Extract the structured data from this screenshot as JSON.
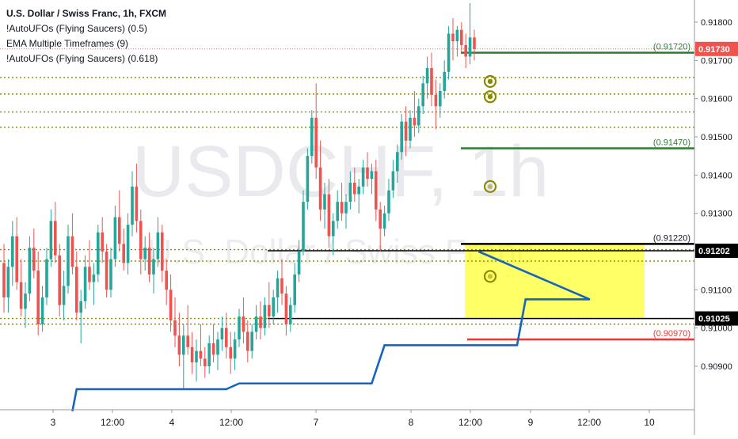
{
  "header": {
    "title": "U.S. Dollar / Swiss Franc, 1h, FXCM",
    "indicators": [
      "!AutoUFOs (Flying Saucers) (0.5)",
      "EMA Multiple Timeframes (9)",
      "!AutoUFOs (Flying Saucers) (0.618)"
    ]
  },
  "watermark": {
    "symbol": "USDCHF, 1h",
    "name": "U.S. Dollar / Swiss Franc"
  },
  "colors": {
    "up": "#26a69a",
    "down": "#ef5350",
    "green_line": "#2e7d32",
    "red_line": "#e53935",
    "ema": "#1565c0",
    "dotted": "#8a8a00",
    "zone": "#ffff00",
    "ufo": "#8a8a00",
    "axis_text": "#131722"
  },
  "chart_data": {
    "type": "candlestick",
    "x_ticks": [
      "3",
      "12:00",
      "4",
      "12:00",
      "7",
      "8",
      "12:00",
      "9",
      "12:00",
      "10"
    ],
    "y_ticks": [
      "0.91800",
      "0.91700",
      "0.91600",
      "0.91500",
      "0.91400",
      "0.91300",
      "0.91100",
      "0.91000",
      "0.90900"
    ],
    "ylim": [
      0.9081,
      0.9186
    ],
    "price_labels": [
      {
        "text": "0.91730",
        "value": 0.9173,
        "style": "red"
      },
      {
        "text": "0.91202",
        "value": 0.91202,
        "style": "black"
      },
      {
        "text": "0.91025",
        "value": 0.91025,
        "style": "black"
      }
    ],
    "level_labels": [
      {
        "text": "(0.91720)",
        "value": 0.9172,
        "color": "green"
      },
      {
        "text": "(0.91470)",
        "value": 0.9147,
        "color": "green"
      },
      {
        "text": "(0.91220)",
        "value": 0.9122,
        "color": "black"
      },
      {
        "text": "(0.90970)",
        "value": 0.9097,
        "color": "red"
      }
    ],
    "dotted_levels": [
      0.91655,
      0.91612,
      0.91565,
      0.91525,
      0.91205,
      0.91175,
      0.91025,
      0.9101
    ],
    "zone": {
      "top": 0.9122,
      "bottom": 0.91025
    },
    "ufo_levels": [
      0.91645,
      0.91605,
      0.9137,
      0.91135
    ],
    "ema_steps": [
      {
        "i0": 28,
        "i1": 52,
        "v": 0.9084
      },
      {
        "i0": 55,
        "i1": 86,
        "v": 0.90855
      },
      {
        "i0": 89,
        "i1": 120,
        "v": 0.90955
      },
      {
        "i0": 122,
        "i1": 137,
        "v": 0.91075
      }
    ],
    "ohlc": [
      {
        "o": 0.9117,
        "h": 0.9122,
        "l": 0.9104,
        "c": 0.9108
      },
      {
        "o": 0.9108,
        "h": 0.9118,
        "l": 0.9104,
        "c": 0.9116
      },
      {
        "o": 0.9116,
        "h": 0.9128,
        "l": 0.9111,
        "c": 0.9124
      },
      {
        "o": 0.9124,
        "h": 0.9129,
        "l": 0.911,
        "c": 0.9112
      },
      {
        "o": 0.9112,
        "h": 0.9118,
        "l": 0.9103,
        "c": 0.9105
      },
      {
        "o": 0.9105,
        "h": 0.9112,
        "l": 0.91,
        "c": 0.9109
      },
      {
        "o": 0.9109,
        "h": 0.9124,
        "l": 0.9107,
        "c": 0.9121
      },
      {
        "o": 0.9121,
        "h": 0.9126,
        "l": 0.9113,
        "c": 0.9115
      },
      {
        "o": 0.9115,
        "h": 0.912,
        "l": 0.9098,
        "c": 0.9101
      },
      {
        "o": 0.9101,
        "h": 0.9111,
        "l": 0.9099,
        "c": 0.9108
      },
      {
        "o": 0.9108,
        "h": 0.9121,
        "l": 0.9106,
        "c": 0.9118
      },
      {
        "o": 0.9118,
        "h": 0.9131,
        "l": 0.9116,
        "c": 0.9128
      },
      {
        "o": 0.9128,
        "h": 0.9133,
        "l": 0.9117,
        "c": 0.9119
      },
      {
        "o": 0.9119,
        "h": 0.9122,
        "l": 0.9103,
        "c": 0.9106
      },
      {
        "o": 0.9106,
        "h": 0.9115,
        "l": 0.9102,
        "c": 0.9111
      },
      {
        "o": 0.9111,
        "h": 0.9127,
        "l": 0.9109,
        "c": 0.9124
      },
      {
        "o": 0.9124,
        "h": 0.913,
        "l": 0.9114,
        "c": 0.9116
      },
      {
        "o": 0.9116,
        "h": 0.912,
        "l": 0.9102,
        "c": 0.9104
      },
      {
        "o": 0.9104,
        "h": 0.911,
        "l": 0.9096,
        "c": 0.9107
      },
      {
        "o": 0.9107,
        "h": 0.9119,
        "l": 0.9105,
        "c": 0.9116
      },
      {
        "o": 0.9116,
        "h": 0.9123,
        "l": 0.911,
        "c": 0.9112
      },
      {
        "o": 0.9112,
        "h": 0.9117,
        "l": 0.9106,
        "c": 0.9114
      },
      {
        "o": 0.9114,
        "h": 0.9127,
        "l": 0.9112,
        "c": 0.9125
      },
      {
        "o": 0.9125,
        "h": 0.9129,
        "l": 0.9117,
        "c": 0.912
      },
      {
        "o": 0.912,
        "h": 0.9122,
        "l": 0.9108,
        "c": 0.911
      },
      {
        "o": 0.911,
        "h": 0.9121,
        "l": 0.9108,
        "c": 0.9118
      },
      {
        "o": 0.9118,
        "h": 0.9132,
        "l": 0.9116,
        "c": 0.9129
      },
      {
        "o": 0.9129,
        "h": 0.9136,
        "l": 0.912,
        "c": 0.9122
      },
      {
        "o": 0.9122,
        "h": 0.9126,
        "l": 0.9115,
        "c": 0.9117
      },
      {
        "o": 0.9117,
        "h": 0.913,
        "l": 0.9114,
        "c": 0.9127
      },
      {
        "o": 0.9127,
        "h": 0.9141,
        "l": 0.9124,
        "c": 0.9137
      },
      {
        "o": 0.9137,
        "h": 0.9143,
        "l": 0.9125,
        "c": 0.9128
      },
      {
        "o": 0.9128,
        "h": 0.9131,
        "l": 0.9114,
        "c": 0.9118
      },
      {
        "o": 0.9118,
        "h": 0.9124,
        "l": 0.9115,
        "c": 0.9121
      },
      {
        "o": 0.9121,
        "h": 0.9125,
        "l": 0.9112,
        "c": 0.9114
      },
      {
        "o": 0.9114,
        "h": 0.9121,
        "l": 0.9109,
        "c": 0.9118
      },
      {
        "o": 0.9118,
        "h": 0.9129,
        "l": 0.9116,
        "c": 0.9125
      },
      {
        "o": 0.9125,
        "h": 0.9127,
        "l": 0.9112,
        "c": 0.9115
      },
      {
        "o": 0.9115,
        "h": 0.9118,
        "l": 0.9106,
        "c": 0.911
      },
      {
        "o": 0.911,
        "h": 0.9114,
        "l": 0.9099,
        "c": 0.9102
      },
      {
        "o": 0.9102,
        "h": 0.9108,
        "l": 0.9095,
        "c": 0.9098
      },
      {
        "o": 0.9098,
        "h": 0.9104,
        "l": 0.909,
        "c": 0.9093
      },
      {
        "o": 0.9093,
        "h": 0.9101,
        "l": 0.9084,
        "c": 0.9098
      },
      {
        "o": 0.9098,
        "h": 0.9106,
        "l": 0.9093,
        "c": 0.9095
      },
      {
        "o": 0.9095,
        "h": 0.9099,
        "l": 0.9088,
        "c": 0.9091
      },
      {
        "o": 0.9091,
        "h": 0.9097,
        "l": 0.9086,
        "c": 0.9094
      },
      {
        "o": 0.9094,
        "h": 0.9101,
        "l": 0.909,
        "c": 0.9092
      },
      {
        "o": 0.9092,
        "h": 0.9095,
        "l": 0.9087,
        "c": 0.909
      },
      {
        "o": 0.909,
        "h": 0.9098,
        "l": 0.9088,
        "c": 0.9096
      },
      {
        "o": 0.9096,
        "h": 0.9101,
        "l": 0.9091,
        "c": 0.9093
      },
      {
        "o": 0.9093,
        "h": 0.9099,
        "l": 0.9089,
        "c": 0.9097
      },
      {
        "o": 0.9097,
        "h": 0.9103,
        "l": 0.9094,
        "c": 0.91
      },
      {
        "o": 0.91,
        "h": 0.9104,
        "l": 0.9092,
        "c": 0.9095
      },
      {
        "o": 0.9095,
        "h": 0.9099,
        "l": 0.9088,
        "c": 0.9092
      },
      {
        "o": 0.9092,
        "h": 0.9099,
        "l": 0.9089,
        "c": 0.9097
      },
      {
        "o": 0.9097,
        "h": 0.9105,
        "l": 0.9095,
        "c": 0.9103
      },
      {
        "o": 0.9103,
        "h": 0.9108,
        "l": 0.9096,
        "c": 0.9099
      },
      {
        "o": 0.9099,
        "h": 0.9102,
        "l": 0.9091,
        "c": 0.9094
      },
      {
        "o": 0.9094,
        "h": 0.9101,
        "l": 0.9092,
        "c": 0.9099
      },
      {
        "o": 0.9099,
        "h": 0.9106,
        "l": 0.9097,
        "c": 0.9103
      },
      {
        "o": 0.9103,
        "h": 0.9107,
        "l": 0.9097,
        "c": 0.91
      },
      {
        "o": 0.91,
        "h": 0.9108,
        "l": 0.9098,
        "c": 0.9106
      },
      {
        "o": 0.9106,
        "h": 0.9112,
        "l": 0.91,
        "c": 0.9103
      },
      {
        "o": 0.9103,
        "h": 0.911,
        "l": 0.9101,
        "c": 0.9108
      },
      {
        "o": 0.9108,
        "h": 0.9115,
        "l": 0.9104,
        "c": 0.9113
      },
      {
        "o": 0.9113,
        "h": 0.9118,
        "l": 0.9106,
        "c": 0.9109
      },
      {
        "o": 0.9109,
        "h": 0.9111,
        "l": 0.9098,
        "c": 0.9101
      },
      {
        "o": 0.9101,
        "h": 0.9108,
        "l": 0.9099,
        "c": 0.9106
      },
      {
        "o": 0.9106,
        "h": 0.9117,
        "l": 0.9104,
        "c": 0.9114
      },
      {
        "o": 0.9114,
        "h": 0.9123,
        "l": 0.9112,
        "c": 0.912
      },
      {
        "o": 0.912,
        "h": 0.9136,
        "l": 0.9119,
        "c": 0.9133
      },
      {
        "o": 0.9133,
        "h": 0.9147,
        "l": 0.9131,
        "c": 0.9145
      },
      {
        "o": 0.9145,
        "h": 0.9157,
        "l": 0.9143,
        "c": 0.9155
      },
      {
        "o": 0.9155,
        "h": 0.9164,
        "l": 0.9139,
        "c": 0.9142
      },
      {
        "o": 0.9142,
        "h": 0.9149,
        "l": 0.9128,
        "c": 0.9131
      },
      {
        "o": 0.9131,
        "h": 0.9138,
        "l": 0.9126,
        "c": 0.9135
      },
      {
        "o": 0.9135,
        "h": 0.9139,
        "l": 0.9121,
        "c": 0.9124
      },
      {
        "o": 0.9124,
        "h": 0.913,
        "l": 0.9119,
        "c": 0.9128
      },
      {
        "o": 0.9128,
        "h": 0.9136,
        "l": 0.9126,
        "c": 0.9133
      },
      {
        "o": 0.9133,
        "h": 0.9138,
        "l": 0.9128,
        "c": 0.913
      },
      {
        "o": 0.913,
        "h": 0.9135,
        "l": 0.9126,
        "c": 0.9133
      },
      {
        "o": 0.9133,
        "h": 0.9141,
        "l": 0.9131,
        "c": 0.9138
      },
      {
        "o": 0.9138,
        "h": 0.9142,
        "l": 0.9133,
        "c": 0.9135
      },
      {
        "o": 0.9135,
        "h": 0.9139,
        "l": 0.913,
        "c": 0.9137
      },
      {
        "o": 0.9137,
        "h": 0.9144,
        "l": 0.9135,
        "c": 0.9142
      },
      {
        "o": 0.9142,
        "h": 0.9146,
        "l": 0.9137,
        "c": 0.9139
      },
      {
        "o": 0.9139,
        "h": 0.9143,
        "l": 0.9135,
        "c": 0.9141
      },
      {
        "o": 0.9141,
        "h": 0.9144,
        "l": 0.9128,
        "c": 0.9131
      },
      {
        "o": 0.9131,
        "h": 0.9133,
        "l": 0.912,
        "c": 0.9126
      },
      {
        "o": 0.9126,
        "h": 0.9132,
        "l": 0.9124,
        "c": 0.913
      },
      {
        "o": 0.913,
        "h": 0.9139,
        "l": 0.9128,
        "c": 0.9136
      },
      {
        "o": 0.9136,
        "h": 0.9144,
        "l": 0.9134,
        "c": 0.9141
      },
      {
        "o": 0.9141,
        "h": 0.9148,
        "l": 0.9138,
        "c": 0.9146
      },
      {
        "o": 0.9146,
        "h": 0.9156,
        "l": 0.9144,
        "c": 0.9154
      },
      {
        "o": 0.9154,
        "h": 0.9158,
        "l": 0.9145,
        "c": 0.9149
      },
      {
        "o": 0.9149,
        "h": 0.9157,
        "l": 0.9147,
        "c": 0.9155
      },
      {
        "o": 0.9155,
        "h": 0.9162,
        "l": 0.915,
        "c": 0.9153
      },
      {
        "o": 0.9153,
        "h": 0.916,
        "l": 0.9151,
        "c": 0.9158
      },
      {
        "o": 0.9158,
        "h": 0.9166,
        "l": 0.9156,
        "c": 0.9164
      },
      {
        "o": 0.9164,
        "h": 0.9171,
        "l": 0.916,
        "c": 0.9168
      },
      {
        "o": 0.9168,
        "h": 0.9172,
        "l": 0.9158,
        "c": 0.9161
      },
      {
        "o": 0.9161,
        "h": 0.9165,
        "l": 0.9152,
        "c": 0.9158
      },
      {
        "o": 0.9158,
        "h": 0.9164,
        "l": 0.9155,
        "c": 0.9162
      },
      {
        "o": 0.9162,
        "h": 0.917,
        "l": 0.916,
        "c": 0.9167
      },
      {
        "o": 0.9167,
        "h": 0.9179,
        "l": 0.9165,
        "c": 0.9177
      },
      {
        "o": 0.9177,
        "h": 0.9181,
        "l": 0.917,
        "c": 0.9175
      },
      {
        "o": 0.9175,
        "h": 0.9179,
        "l": 0.9171,
        "c": 0.9178
      },
      {
        "o": 0.9178,
        "h": 0.918,
        "l": 0.9172,
        "c": 0.9174
      },
      {
        "o": 0.9174,
        "h": 0.9177,
        "l": 0.9168,
        "c": 0.9171
      },
      {
        "o": 0.9171,
        "h": 0.9185,
        "l": 0.9169,
        "c": 0.9176
      },
      {
        "o": 0.9176,
        "h": 0.9178,
        "l": 0.917,
        "c": 0.9173
      }
    ]
  }
}
